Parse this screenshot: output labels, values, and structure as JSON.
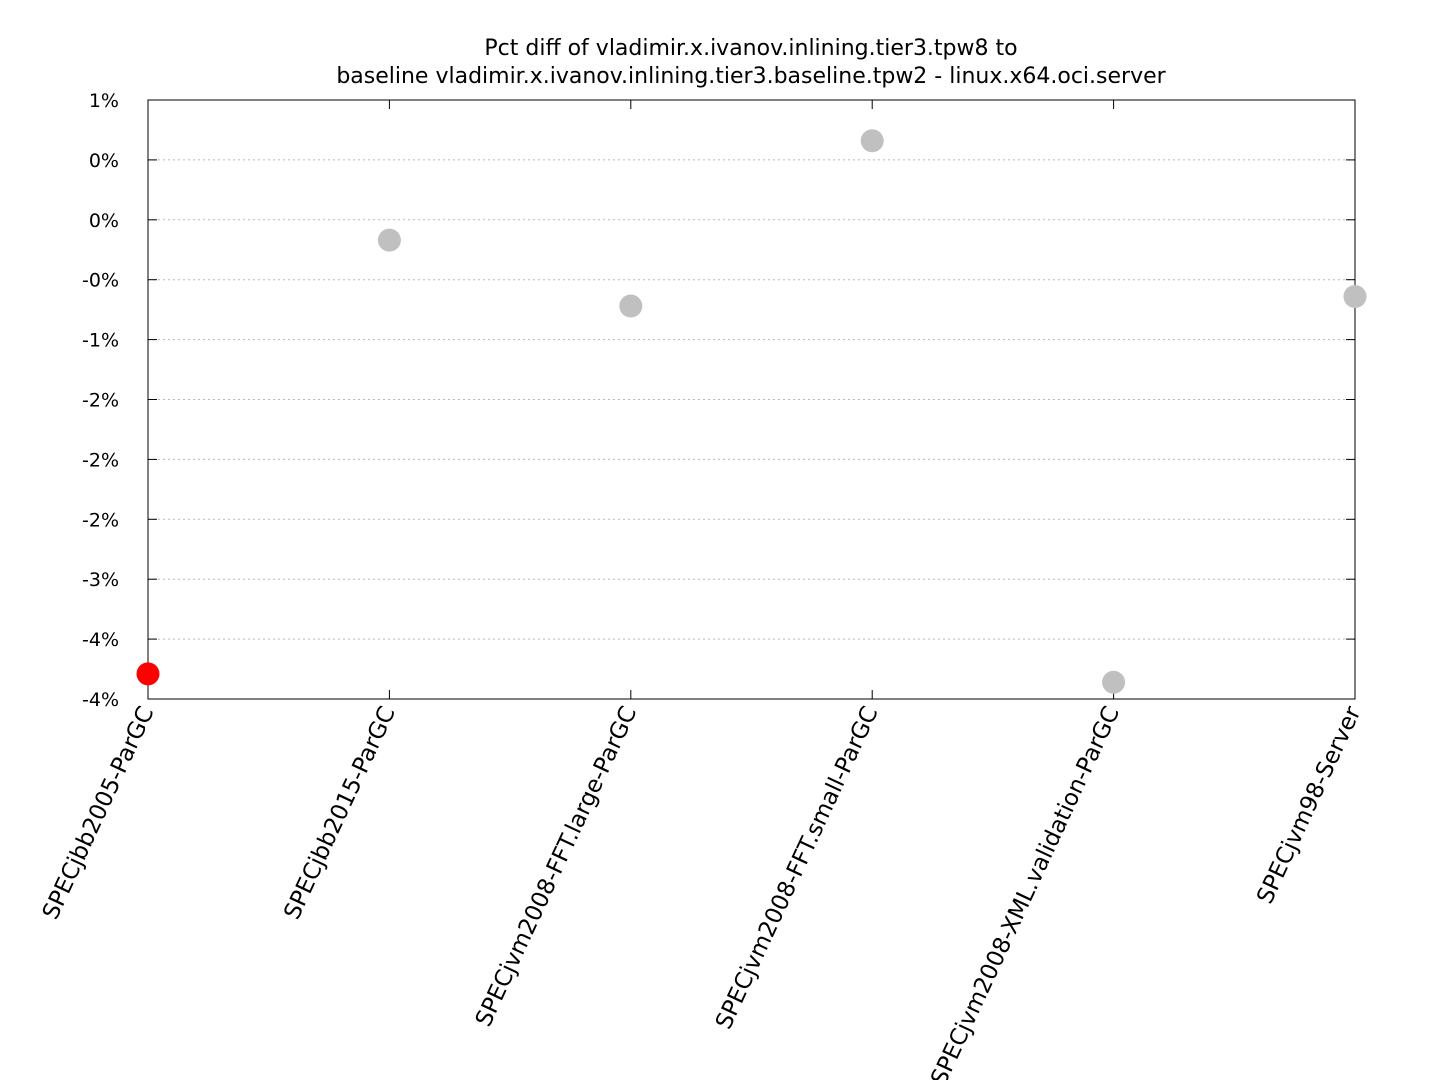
{
  "chart_data": {
    "type": "scatter",
    "title_lines": [
      "Pct diff of vladimir.x.ivanov.inlining.tier3.tpw8 to",
      "baseline vladimir.x.ivanov.inlining.tier3.baseline.tpw2 - linux.x64.oci.server"
    ],
    "xlabel": "",
    "ylabel": "",
    "categories": [
      "SPECjbb2005-ParGC",
      "SPECjbb2015-ParGC",
      "SPECjvm2008-FFT.large-ParGC",
      "SPECjvm2008-FFT.small-ParGC",
      "SPECjvm2008-XML.validation-ParGC",
      "SPECjvm98-Server"
    ],
    "ylim": [
      -4.0,
      1.0
    ],
    "y_ticks": [
      {
        "value": 1.0,
        "label": "1%"
      },
      {
        "value": 0.5,
        "label": "0%"
      },
      {
        "value": 0.0,
        "label": "0%"
      },
      {
        "value": -0.5,
        "label": "-0%"
      },
      {
        "value": -1.0,
        "label": "-1%"
      },
      {
        "value": -1.5,
        "label": "-2%"
      },
      {
        "value": -2.0,
        "label": "-2%"
      },
      {
        "value": -2.5,
        "label": "-2%"
      },
      {
        "value": -3.0,
        "label": "-3%"
      },
      {
        "value": -3.5,
        "label": "-4%"
      },
      {
        "value": -4.0,
        "label": "-4%"
      }
    ],
    "grid": true,
    "legend": "none",
    "points": [
      {
        "category": "SPECjbb2005-ParGC",
        "value": -3.79,
        "color": "#ff0000"
      },
      {
        "category": "SPECjbb2015-ParGC",
        "value": -0.17,
        "color": "#c0c0c0"
      },
      {
        "category": "SPECjvm2008-FFT.large-ParGC",
        "value": -0.72,
        "color": "#c0c0c0"
      },
      {
        "category": "SPECjvm2008-FFT.small-ParGC",
        "value": 0.66,
        "color": "#c0c0c0"
      },
      {
        "category": "SPECjvm2008-XML.validation-ParGC",
        "value": -3.86,
        "color": "#c0c0c0"
      },
      {
        "category": "SPECjvm98-Server",
        "value": -0.64,
        "color": "#c0c0c0"
      }
    ]
  }
}
